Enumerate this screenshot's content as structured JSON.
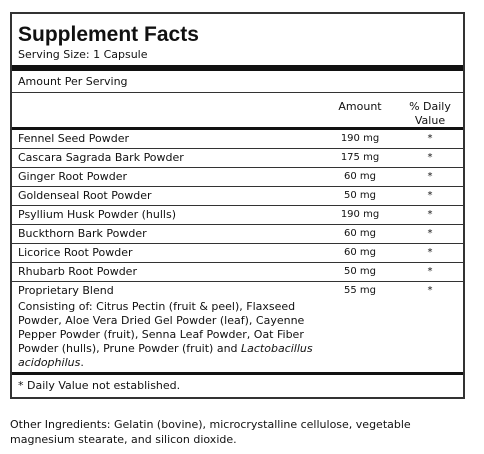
{
  "label": {
    "title": "Supplement Facts",
    "serving_size": "Serving Size: 1 Capsule",
    "amount_per_serving": "Amount Per Serving",
    "header": {
      "amount": "Amount",
      "daily_value": "% Daily Value"
    },
    "rows": [
      {
        "name": "Fennel Seed Powder",
        "amount": "190 mg",
        "daily_value": "*"
      },
      {
        "name": "Cascara Sagrada Bark Powder",
        "amount": "175 mg",
        "daily_value": "*"
      },
      {
        "name": "Ginger Root Powder",
        "amount": "60 mg",
        "daily_value": "*"
      },
      {
        "name": "Goldenseal Root Powder",
        "amount": "50 mg",
        "daily_value": "*"
      },
      {
        "name": "Psyllium Husk Powder (hulls)",
        "amount": "190 mg",
        "daily_value": "*"
      },
      {
        "name": "Buckthorn Bark Powder",
        "amount": "60 mg",
        "daily_value": "*"
      },
      {
        "name": "Licorice Root Powder",
        "amount": "60 mg",
        "daily_value": "*"
      },
      {
        "name": "Rhubarb Root Powder",
        "amount": "50 mg",
        "daily_value": "*"
      },
      {
        "name": "Proprietary Blend",
        "amount": "55 mg",
        "daily_value": "*",
        "description": {
          "text": "Consisting of: Citrus Pectin (fruit & peel), Flaxseed Powder, Aloe Vera Dried Gel Powder (leaf), Cayenne Pepper Powder (fruit), Senna Leaf Powder, Oat Fiber Powder (hulls), Prune Powder (fruit) and ",
          "italic": "Lactobacillus acidophilus",
          "end": "."
        }
      }
    ],
    "footnote": "* Daily Value not established."
  },
  "other_ingredients": "Other Ingredients: Gelatin (bovine), microcrystalline cellulose, vegetable magnesium stearate, and silicon dioxide."
}
